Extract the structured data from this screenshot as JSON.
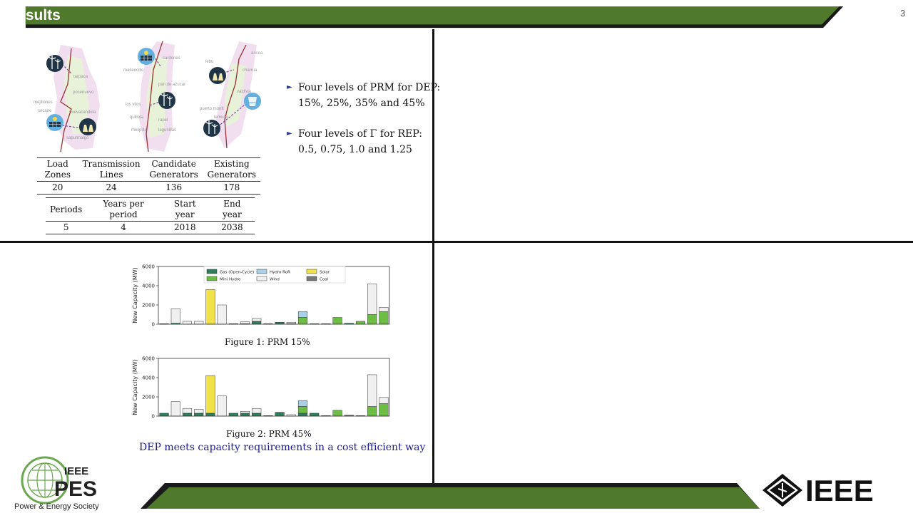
{
  "header": {
    "title": "Results",
    "page_number": "3"
  },
  "maps": {
    "labels": [
      [
        "tarpaca",
        "pocenuevo",
        "mejillones",
        "socaire",
        "nuevacandela",
        "sapurmalgo"
      ],
      [
        "cardones",
        "maitencillo",
        "pan de azucar",
        "los vilos",
        "quillota",
        "melipilla",
        "rapel",
        "lagunillas"
      ],
      [
        "ancoa",
        "charrua",
        "lebu",
        "puerto montt",
        "valdivia",
        "temuco"
      ]
    ]
  },
  "table_zones": {
    "headers": [
      "Load Zones",
      "Transmission Lines",
      "Candidate Generators",
      "Existing Generators"
    ],
    "values": [
      "20",
      "24",
      "136",
      "178"
    ]
  },
  "table_periods": {
    "headers": [
      "Periods",
      "Years per period",
      "Start year",
      "End year"
    ],
    "values": [
      "5",
      "4",
      "2018",
      "2038"
    ]
  },
  "bullets": [
    {
      "line1": "Four levels of PRM for DEP:",
      "line2": "15%, 25%, 35% and 45%"
    },
    {
      "line1": "Four levels of Γ for REP:",
      "line2": "0.5, 0.75, 1.0 and 1.25"
    }
  ],
  "legend": [
    {
      "name": "Gas (Open-Cycle)",
      "color": "#2e7d5b"
    },
    {
      "name": "Hydro RoR",
      "color": "#a8d0e6"
    },
    {
      "name": "Solar",
      "color": "#f2e24a"
    },
    {
      "name": "Mini Hydro",
      "color": "#6dbd45"
    },
    {
      "name": "Wind",
      "color": "#f0f0f0"
    },
    {
      "name": "Coal",
      "color": "#777777"
    }
  ],
  "chart_data": [
    {
      "type": "bar",
      "title": "Figure 1: PRM 15%",
      "ylabel": "New Capacity (MW)",
      "ylim": [
        0,
        6000
      ],
      "yticks": [
        "0",
        "2000",
        "4000",
        "6000"
      ],
      "stacked": true,
      "series_order": [
        "Gas (Open-Cycle)",
        "Mini Hydro",
        "Hydro RoR",
        "Coal",
        "Solar",
        "Wind"
      ],
      "bars": [
        {
          "Gas (Open-Cycle)": 50
        },
        {
          "Gas (Open-Cycle)": 100,
          "Wind": 1500
        },
        {
          "Wind": 300
        },
        {
          "Wind": 300
        },
        {
          "Solar": 3600
        },
        {
          "Wind": 2000
        },
        {
          "Gas (Open-Cycle)": 50
        },
        {
          "Gas (Open-Cycle)": 50,
          "Wind": 200
        },
        {
          "Gas (Open-Cycle)": 300,
          "Wind": 300
        },
        {
          "Gas (Open-Cycle)": 50
        },
        {
          "Gas (Open-Cycle)": 200
        },
        {
          "Gas (Open-Cycle)": 50,
          "Wind": 150
        },
        {
          "Mini Hydro": 700,
          "Hydro RoR": 600
        },
        {
          "Gas (Open-Cycle)": 50
        },
        {
          "Gas (Open-Cycle)": 50
        },
        {
          "Mini Hydro": 700
        },
        {
          "Gas (Open-Cycle)": 100
        },
        {
          "Mini Hydro": 300
        },
        {
          "Mini Hydro": 1000,
          "Wind": 3200
        },
        {
          "Mini Hydro": 1300,
          "Wind": 450
        }
      ]
    },
    {
      "type": "bar",
      "title": "Figure 2: PRM 45%",
      "ylabel": "New Capacity (MW)",
      "ylim": [
        0,
        6000
      ],
      "yticks": [
        "0",
        "2000",
        "4000",
        "6000"
      ],
      "stacked": true,
      "series_order": [
        "Gas (Open-Cycle)",
        "Mini Hydro",
        "Hydro RoR",
        "Coal",
        "Solar",
        "Wind"
      ],
      "bars": [
        {
          "Gas (Open-Cycle)": 300
        },
        {
          "Wind": 1500
        },
        {
          "Gas (Open-Cycle)": 300,
          "Wind": 500
        },
        {
          "Gas (Open-Cycle)": 300,
          "Wind": 400
        },
        {
          "Gas (Open-Cycle)": 300,
          "Solar": 3900
        },
        {
          "Wind": 2100
        },
        {
          "Gas (Open-Cycle)": 300
        },
        {
          "Gas (Open-Cycle)": 300,
          "Wind": 200
        },
        {
          "Gas (Open-Cycle)": 300,
          "Wind": 500
        },
        {
          "Gas (Open-Cycle)": 50
        },
        {
          "Gas (Open-Cycle)": 400
        },
        {
          "Wind": 150
        },
        {
          "Gas (Open-Cycle)": 300,
          "Mini Hydro": 700,
          "Hydro RoR": 600
        },
        {
          "Gas (Open-Cycle)": 300
        },
        {
          "Gas (Open-Cycle)": 50
        },
        {
          "Mini Hydro": 600
        },
        {
          "Gas (Open-Cycle)": 100
        },
        {
          "Gas (Open-Cycle)": 50
        },
        {
          "Mini Hydro": 1000,
          "Wind": 3300
        },
        {
          "Mini Hydro": 1300,
          "Wind": 650
        }
      ]
    }
  ],
  "conclusion": "DEP meets capacity requirements in a cost efficient way",
  "logos": {
    "pes_top": "IEEE",
    "pes_main": "PES",
    "pes_sub": "Power & Energy Society",
    "ieee": "IEEE"
  },
  "colors": {
    "header_green": "#4f7a2b",
    "divider": "#111111",
    "accent_text": "#1a1a8c"
  }
}
